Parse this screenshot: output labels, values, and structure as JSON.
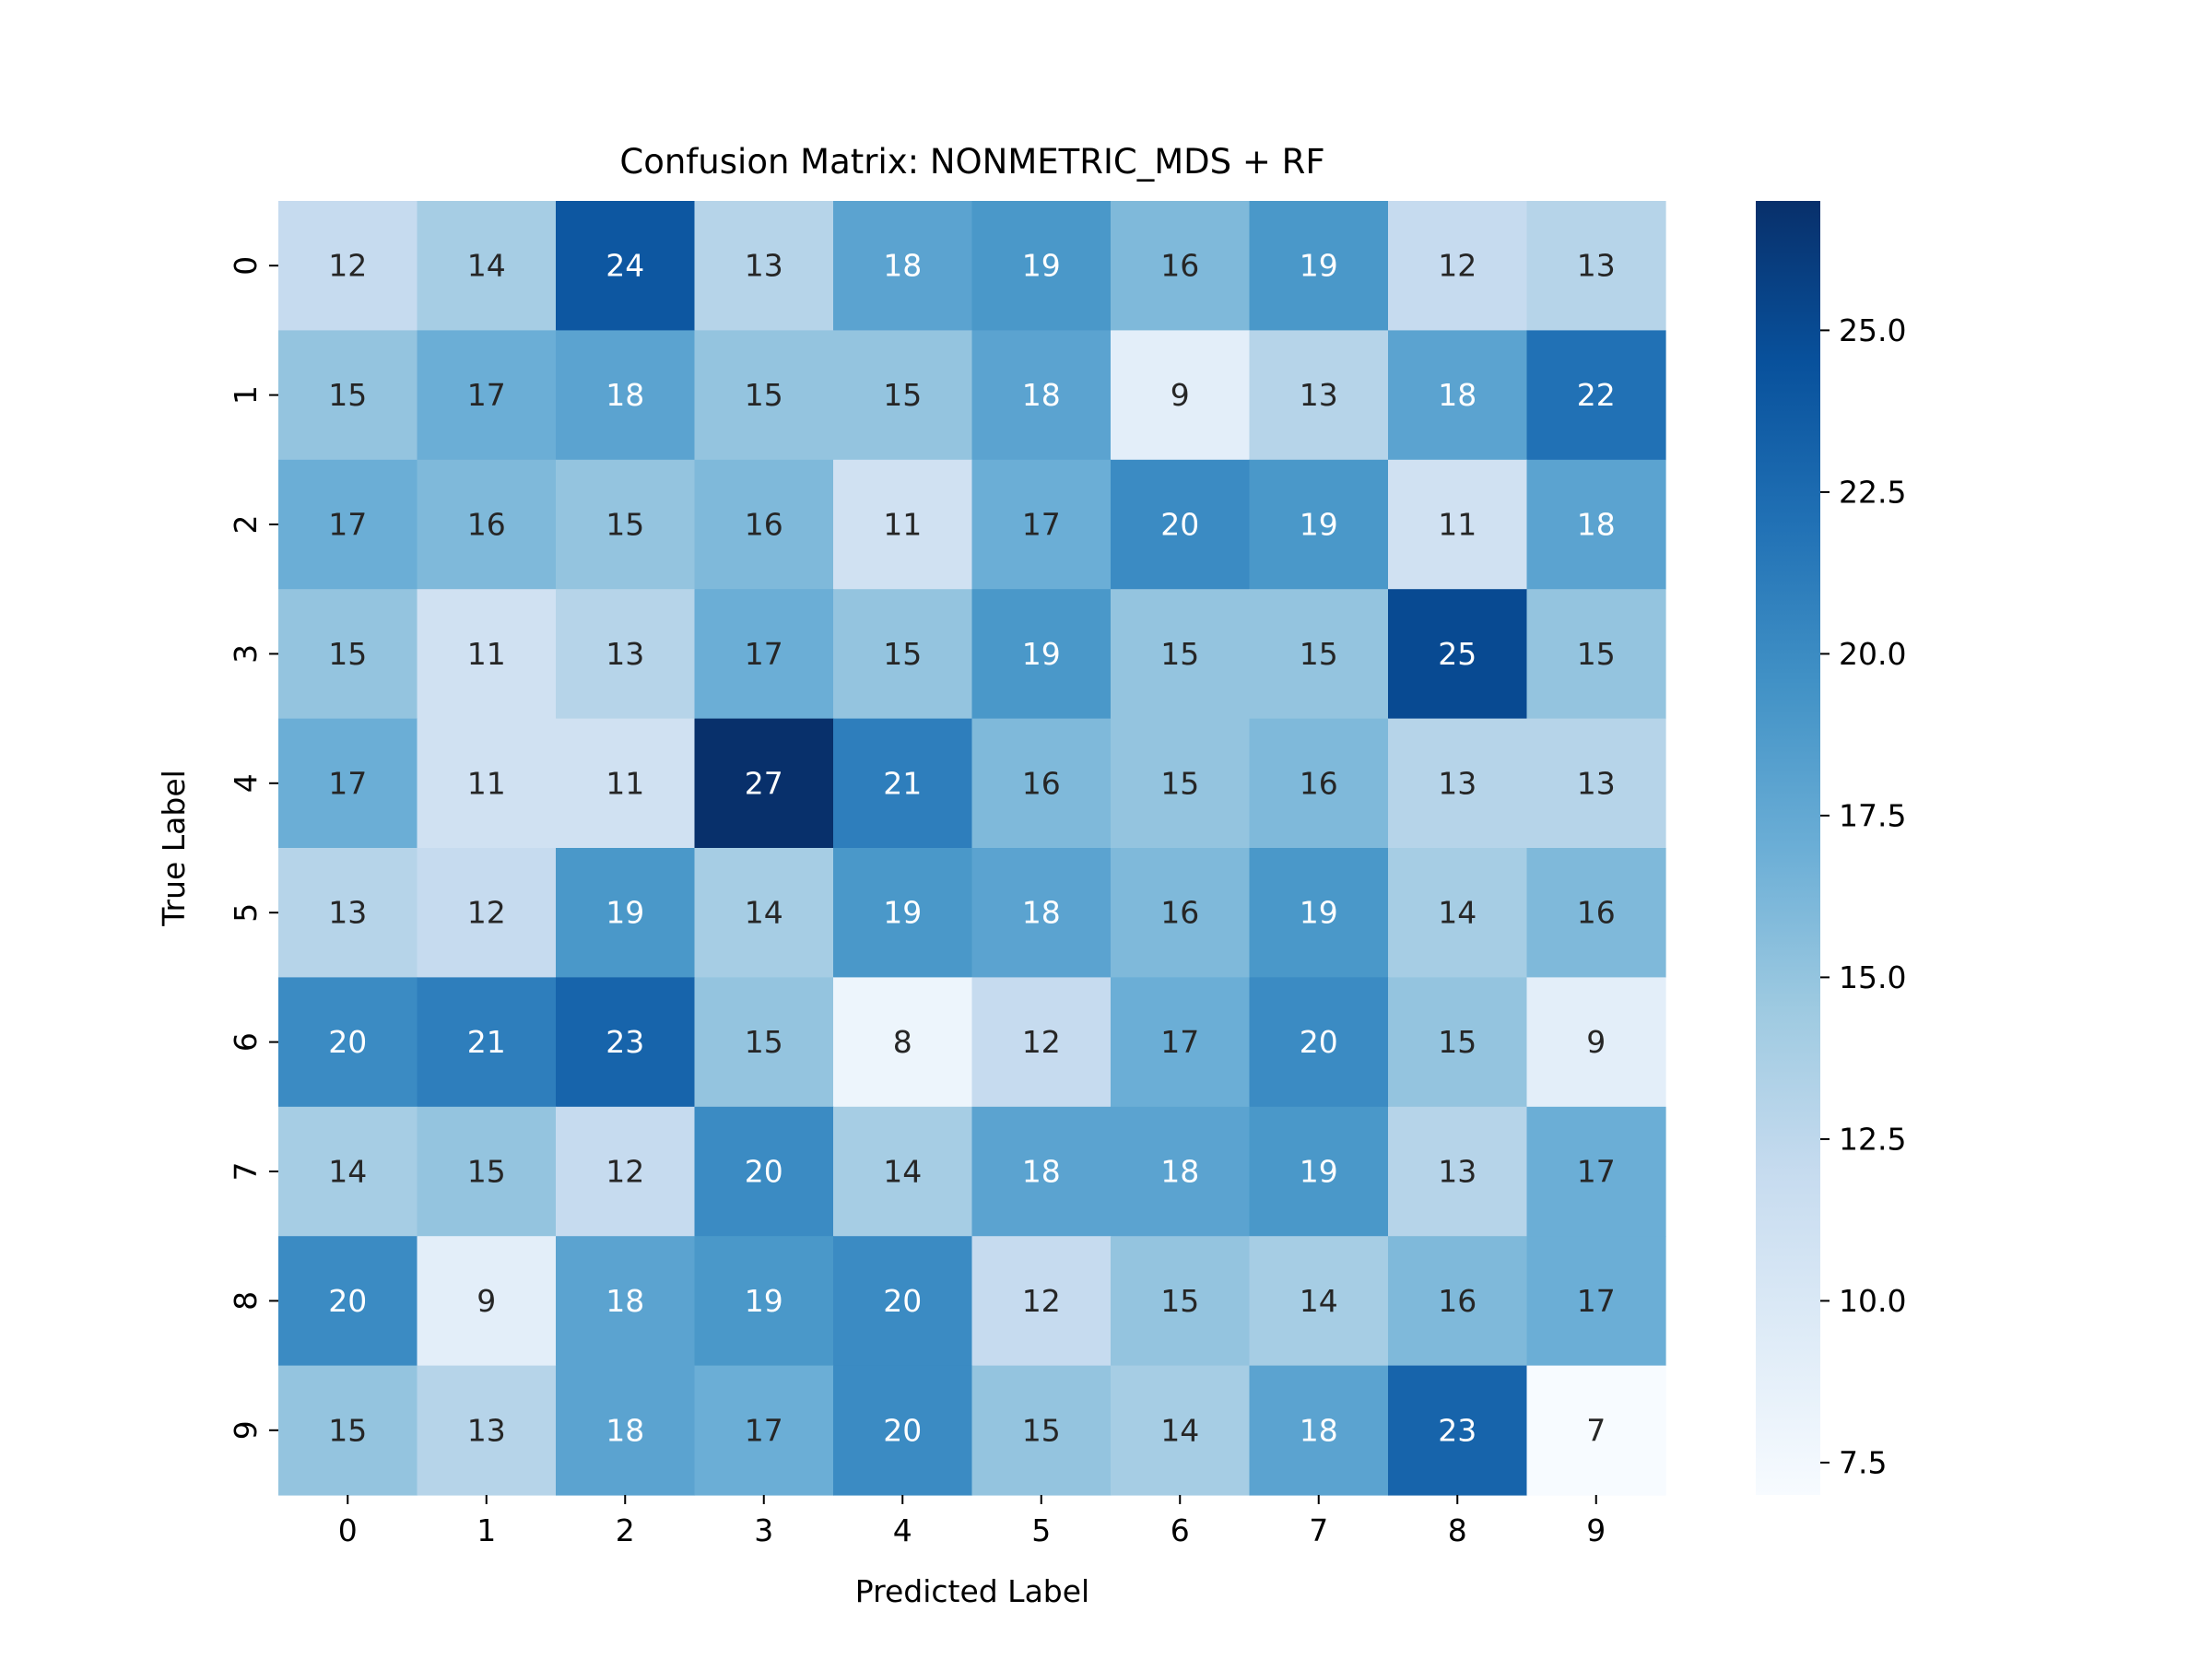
{
  "chart_data": {
    "type": "heatmap",
    "title": "Confusion Matrix: NONMETRIC_MDS + RF",
    "xlabel": "Predicted Label",
    "ylabel": "True Label",
    "x_categories": [
      "0",
      "1",
      "2",
      "3",
      "4",
      "5",
      "6",
      "7",
      "8",
      "9"
    ],
    "y_categories": [
      "0",
      "1",
      "2",
      "3",
      "4",
      "5",
      "6",
      "7",
      "8",
      "9"
    ],
    "values": [
      [
        12,
        14,
        24,
        13,
        18,
        19,
        16,
        19,
        12,
        13
      ],
      [
        15,
        17,
        18,
        15,
        15,
        18,
        9,
        13,
        18,
        22
      ],
      [
        17,
        16,
        15,
        16,
        11,
        17,
        20,
        19,
        11,
        18
      ],
      [
        15,
        11,
        13,
        17,
        15,
        19,
        15,
        15,
        25,
        15
      ],
      [
        17,
        11,
        11,
        27,
        21,
        16,
        15,
        16,
        13,
        13
      ],
      [
        13,
        12,
        19,
        14,
        19,
        18,
        16,
        19,
        14,
        16
      ],
      [
        20,
        21,
        23,
        15,
        8,
        12,
        17,
        20,
        15,
        9
      ],
      [
        14,
        15,
        12,
        20,
        14,
        18,
        18,
        19,
        13,
        17
      ],
      [
        20,
        9,
        18,
        19,
        20,
        12,
        15,
        14,
        16,
        17
      ],
      [
        15,
        13,
        18,
        17,
        20,
        15,
        14,
        18,
        23,
        7
      ]
    ],
    "colorbar": {
      "vmin": 7,
      "vmax": 27,
      "ticks": [
        7.5,
        10.0,
        12.5,
        15.0,
        17.5,
        20.0,
        22.5,
        25.0
      ],
      "tick_labels": [
        "7.5",
        "10.0",
        "12.5",
        "15.0",
        "17.5",
        "20.0",
        "22.5",
        "25.0"
      ]
    },
    "colormap": "Blues",
    "annotated": true,
    "grid": false
  }
}
